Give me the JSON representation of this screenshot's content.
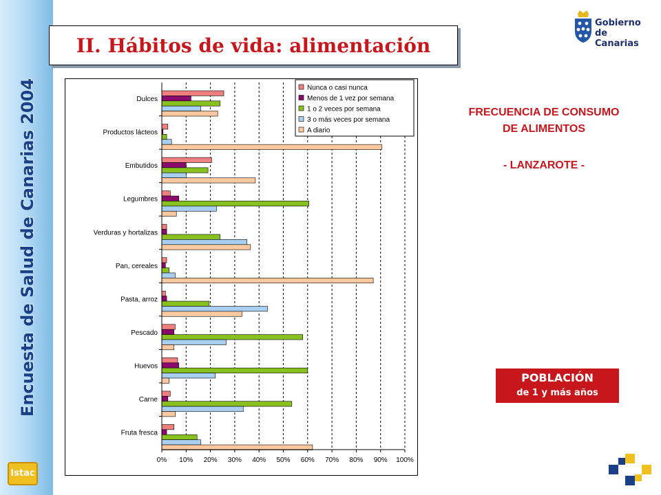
{
  "sidebar": {
    "text": "Encuesta de Salud de Canarias 2004",
    "logo_label": "Istac"
  },
  "header": {
    "title": "II. Hábitos de vida: alimentación",
    "gov_logo_line1": "Gobierno",
    "gov_logo_line2": "de Canarias"
  },
  "info": {
    "frecuencia_line1": "FRECUENCIA DE CONSUMO",
    "frecuencia_line2": "DE ALIMENTOS",
    "region": "- LANZAROTE -",
    "poblacion_title": "POBLACIÓN",
    "poblacion_sub": "de 1 y más años"
  },
  "colors": {
    "accent_red": "#c8161d",
    "navy": "#1a3f86",
    "series": [
      "#f08080",
      "#8b0a6e",
      "#88c020",
      "#a8cef0",
      "#fcc8a0"
    ]
  },
  "chart_data": {
    "type": "bar",
    "orientation": "horizontal",
    "categories": [
      "Dulces",
      "Productos lácteos",
      "Embutidos",
      "Legumbres",
      "Verduras y hortalizas",
      "Pan, cereales",
      "Pasta, arroz",
      "Pescado",
      "Huevos",
      "Carne",
      "Fruta fresca"
    ],
    "series": [
      {
        "name": "Nunca o casi nunca",
        "values": [
          25.5,
          2.5,
          20.5,
          3.5,
          2,
          2,
          1.5,
          5.5,
          6.5,
          3.5,
          5
        ]
      },
      {
        "name": "Menos de 1 vez por semana",
        "values": [
          12,
          0.5,
          10,
          7,
          2,
          1.5,
          2,
          5,
          7,
          2.5,
          2
        ]
      },
      {
        "name": "1 o 2 veces por semana",
        "values": [
          24,
          2,
          19,
          60.5,
          24,
          3,
          19.5,
          58,
          60,
          53.5,
          14.5
        ]
      },
      {
        "name": "3 o más veces por semana",
        "values": [
          16,
          4,
          10,
          22.5,
          35,
          5.5,
          43.5,
          26.5,
          22,
          33.5,
          16
        ]
      },
      {
        "name": "A diario",
        "values": [
          23,
          90.5,
          38.5,
          6,
          36.5,
          87,
          33,
          5,
          3,
          5.5,
          62
        ]
      }
    ],
    "x_ticks": [
      "0%",
      "10%",
      "20%",
      "30%",
      "40%",
      "50%",
      "60%",
      "70%",
      "80%",
      "90%",
      "100%"
    ],
    "xlim": [
      0,
      100
    ],
    "grid": "vertical dashed",
    "legend": "top-right"
  }
}
